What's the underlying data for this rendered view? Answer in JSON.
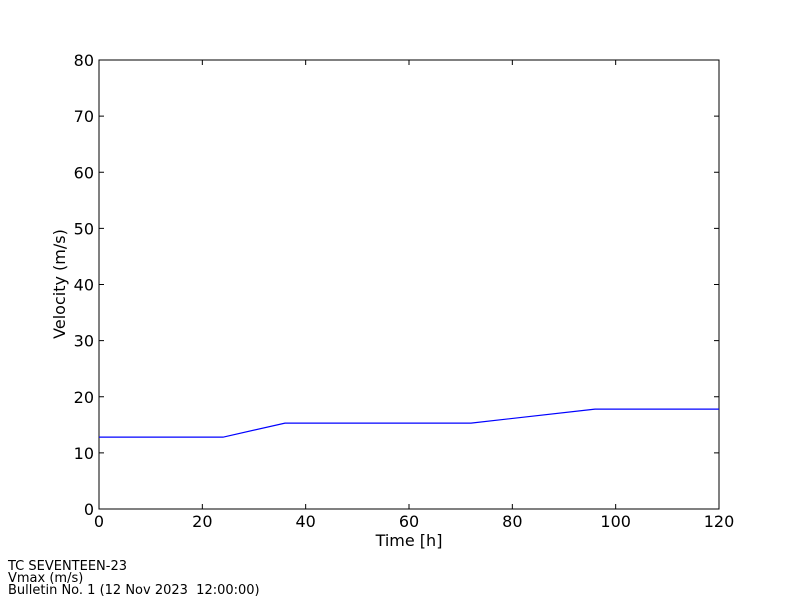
{
  "chart_data": {
    "type": "line",
    "xlabel": "Time [h]",
    "ylabel": "Velocity (m/s)",
    "x": [
      0,
      24,
      36,
      72,
      96,
      120
    ],
    "series": [
      {
        "name": "Vmax",
        "color": "#0000ff",
        "values": [
          12.8,
          12.8,
          15.3,
          15.3,
          17.8,
          17.8
        ]
      }
    ],
    "xlim": [
      0,
      120
    ],
    "xticks": [
      0,
      20,
      40,
      60,
      80,
      100,
      120
    ],
    "ylim": [
      0,
      80
    ],
    "yticks": [
      0,
      10,
      20,
      30,
      40,
      50,
      60,
      70,
      80
    ],
    "grid": false,
    "annotations": [
      "TC SEVENTEEN-23",
      "Vmax (m/s)",
      "Bulletin No. 1 (12 Nov 2023  12:00:00)"
    ]
  }
}
